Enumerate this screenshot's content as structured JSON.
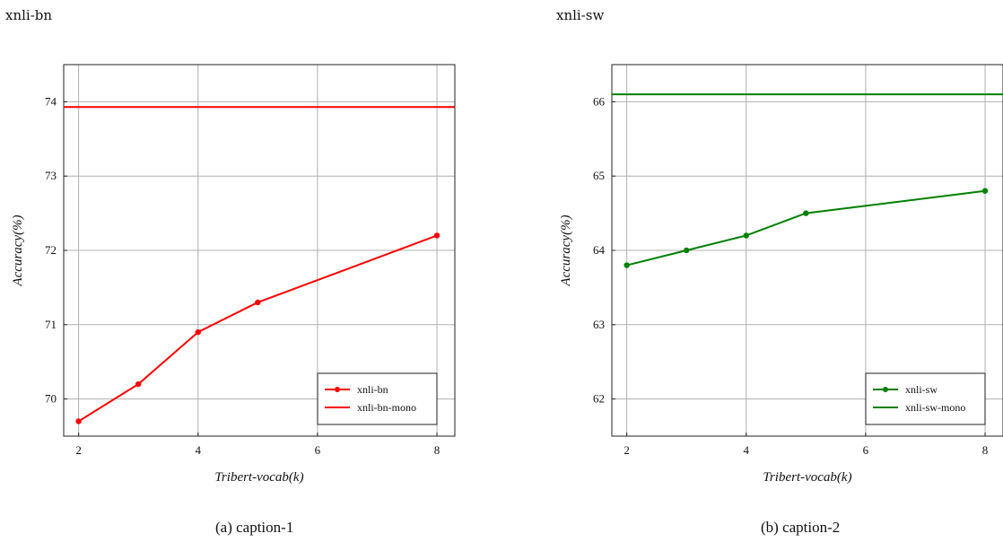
{
  "panels": [
    {
      "title": "xnli-bn",
      "caption": "(a) caption-1"
    },
    {
      "title": "xnli-sw",
      "caption": "(b) caption-2"
    }
  ],
  "chart_data": [
    {
      "type": "line",
      "xlabel": "Tribert-vocab(k)",
      "ylabel": "Accuracy(%)",
      "xlim": [
        1.75,
        8.3
      ],
      "ylim": [
        69.5,
        74.5
      ],
      "xticks": [
        2,
        4,
        6,
        8
      ],
      "yticks": [
        70,
        71,
        72,
        73,
        74
      ],
      "grid": true,
      "legend_position": "lower-right",
      "series": [
        {
          "name": "xnli-bn",
          "x": [
            2,
            3,
            4,
            5,
            8
          ],
          "y": [
            69.7,
            70.2,
            70.9,
            71.3,
            72.2
          ],
          "color": "#ff0000",
          "markers": true
        },
        {
          "name": "xnli-bn-mono",
          "hline": 73.93,
          "color": "#ff0000",
          "markers": false
        }
      ]
    },
    {
      "type": "line",
      "xlabel": "Tribert-vocab(k)",
      "ylabel": "Accuracy(%)",
      "xlim": [
        1.75,
        8.3
      ],
      "ylim": [
        61.5,
        66.5
      ],
      "xticks": [
        2,
        4,
        6,
        8
      ],
      "yticks": [
        62,
        63,
        64,
        65,
        66
      ],
      "grid": true,
      "legend_position": "lower-right",
      "series": [
        {
          "name": "xnli-sw",
          "x": [
            2,
            3,
            4,
            5,
            8
          ],
          "y": [
            63.8,
            64.0,
            64.2,
            64.5,
            64.8
          ],
          "color": "#008000",
          "markers": true
        },
        {
          "name": "xnli-sw-mono",
          "hline": 66.1,
          "color": "#008000",
          "markers": false
        }
      ]
    }
  ]
}
